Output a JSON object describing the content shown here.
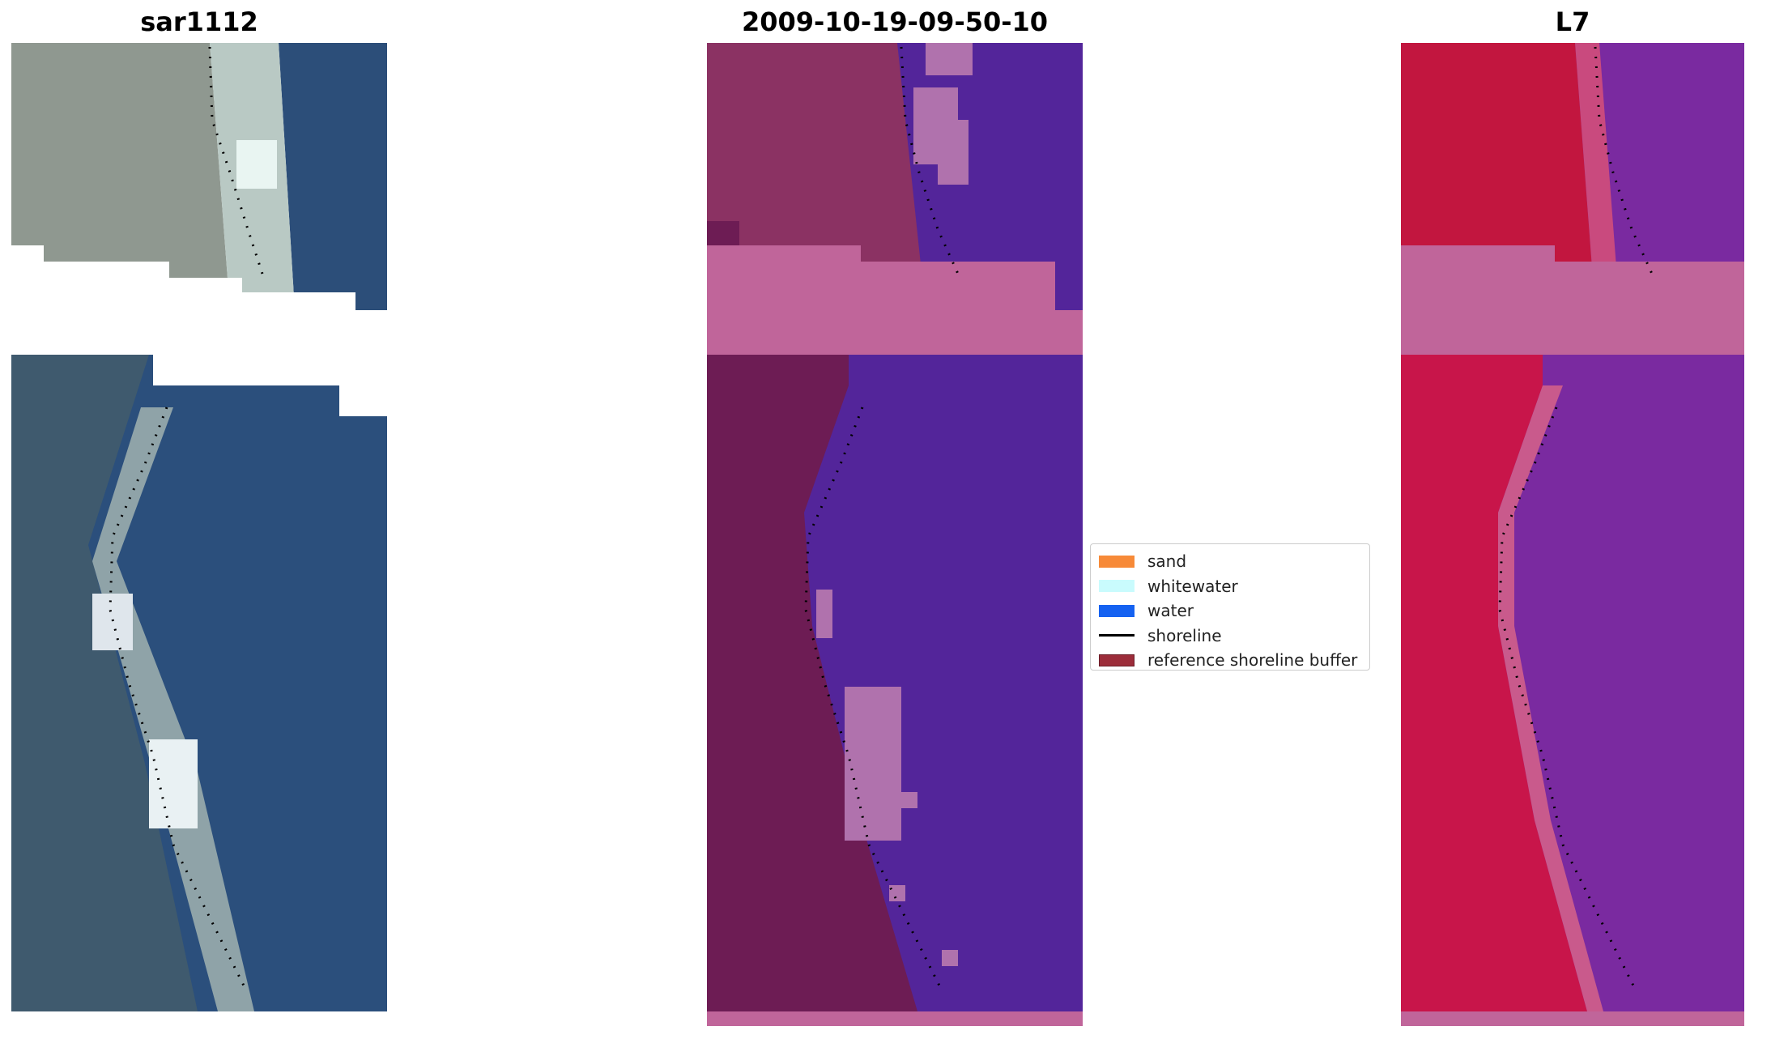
{
  "panels": [
    {
      "title": "sar1112"
    },
    {
      "title": "2009-10-19-09-50-10"
    },
    {
      "title": "L7"
    }
  ],
  "legend": {
    "items": [
      {
        "label": "sand",
        "color": "#f78a38",
        "kind": "patch"
      },
      {
        "label": "whitewater",
        "color": "#c9fbfd",
        "kind": "patch"
      },
      {
        "label": "water",
        "color": "#1562f1",
        "kind": "patch"
      },
      {
        "label": "shoreline",
        "color": "#000000",
        "kind": "line"
      },
      {
        "label": "reference shoreline buffer",
        "color": "#9c2d3a",
        "kind": "patch"
      }
    ]
  },
  "colors": {
    "rgb_land": "#8f9890",
    "rgb_water": "#2c4e79",
    "rgb_surf": "#dbe9e3",
    "class_land": "#8b3263",
    "class_water": "#53259a",
    "class_pink": "#c0659a",
    "class_white": "#b072ad",
    "class_buffer": "#6d1c54",
    "ndwi_land": "#c2163f",
    "ndwi_water": "#7a2aa0",
    "ndwi_pink": "#c0659a",
    "shoreline_dots": "#000000"
  }
}
